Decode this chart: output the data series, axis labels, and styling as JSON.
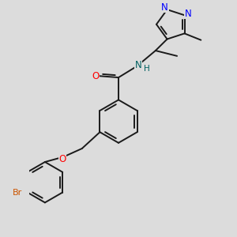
{
  "bg_color": "#dcdcdc",
  "bond_color": "#1a1a1a",
  "bond_width": 1.4,
  "figsize": [
    3.0,
    3.0
  ],
  "dpi": 100,
  "xlim": [
    -1.5,
    4.5
  ],
  "ylim": [
    -3.8,
    3.8
  ]
}
